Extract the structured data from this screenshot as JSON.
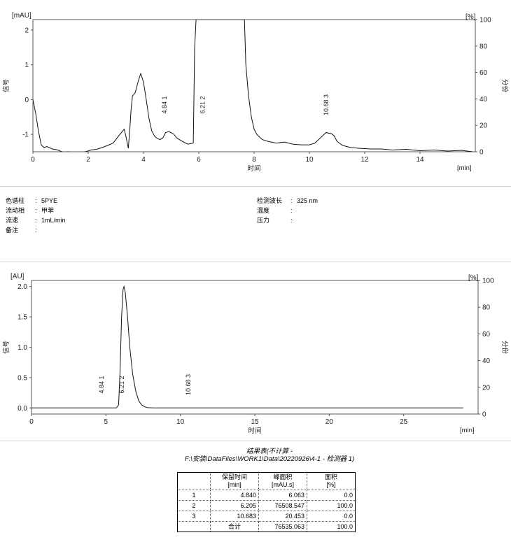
{
  "chart_data": [
    {
      "type": "line",
      "ylabel_unit": "[mAU]",
      "y2label_unit": "[%]",
      "xlabel": "时间",
      "xunit": "[min]",
      "ylabel": "信号",
      "y2label": "分份",
      "xlim": [
        0,
        16
      ],
      "ylim": [
        -1.5,
        2.3
      ],
      "y2lim": [
        0,
        100
      ],
      "xticks": [
        "0",
        "2",
        "4",
        "6",
        "8",
        "10",
        "12",
        "14"
      ],
      "yticks": [
        "-1",
        "0",
        "1",
        "2"
      ],
      "y2ticks": [
        "0",
        "20",
        "40",
        "60",
        "80",
        "100"
      ],
      "series": [
        {
          "x": [
            0.0,
            0.1,
            0.2,
            0.3,
            0.4,
            0.5,
            0.7,
            0.9,
            1.1,
            1.3,
            1.5,
            1.7,
            1.9,
            2.1,
            2.3,
            2.5,
            2.7,
            2.9,
            3.1,
            3.2,
            3.3,
            3.35,
            3.4,
            3.45,
            3.5,
            3.55,
            3.6,
            3.7,
            3.8,
            3.9,
            4.0,
            4.1,
            4.2,
            4.3,
            4.4,
            4.5,
            4.6,
            4.7,
            4.8,
            4.9,
            5.0,
            5.1,
            5.2,
            5.4,
            5.6,
            5.8,
            5.85,
            5.9,
            7.65,
            7.7,
            7.8,
            7.9,
            8.0,
            8.1,
            8.2,
            8.3,
            8.5,
            8.8,
            9.1,
            9.4,
            9.7,
            10.0,
            10.2,
            10.4,
            10.6,
            10.8,
            10.9,
            11.0,
            11.2,
            11.5,
            11.8,
            12.2,
            12.6,
            13.0,
            13.5,
            14.0,
            14.5,
            15.0,
            15.5,
            15.9
          ],
          "values": [
            0.0,
            -0.4,
            -0.9,
            -1.3,
            -1.38,
            -1.35,
            -1.42,
            -1.45,
            -1.52,
            -1.5,
            -1.57,
            -1.52,
            -1.5,
            -1.45,
            -1.43,
            -1.38,
            -1.32,
            -1.25,
            -1.05,
            -0.95,
            -0.85,
            -1.0,
            -1.2,
            -1.4,
            -0.9,
            -0.3,
            0.1,
            0.2,
            0.5,
            0.75,
            0.5,
            0.0,
            -0.55,
            -0.9,
            -1.05,
            -1.12,
            -1.15,
            -1.1,
            -0.95,
            -0.92,
            -0.95,
            -1.0,
            -1.1,
            -1.2,
            -1.28,
            -1.25,
            1.5,
            2.3,
            2.3,
            1.0,
            0.1,
            -0.5,
            -0.85,
            -1.0,
            -1.08,
            -1.15,
            -1.2,
            -1.25,
            -1.22,
            -1.28,
            -1.3,
            -1.3,
            -1.25,
            -1.1,
            -0.95,
            -0.98,
            -1.05,
            -1.2,
            -1.32,
            -1.38,
            -1.4,
            -1.42,
            -1.42,
            -1.45,
            -1.43,
            -1.47,
            -1.45,
            -1.48,
            -1.46,
            -1.5
          ]
        }
      ],
      "peaks": [
        {
          "num": "1",
          "label": "4.84",
          "x": 4.84
        },
        {
          "num": "2",
          "label": "6.21",
          "x": 6.21
        },
        {
          "num": "3",
          "label": "10.68",
          "x": 10.68
        }
      ]
    },
    {
      "type": "line",
      "ylabel_unit": "[AU]",
      "y2label_unit": "[%]",
      "xlabel": "时间",
      "xunit": "[min]",
      "ylabel": "信号",
      "y2label": "分份",
      "xlim": [
        0,
        30
      ],
      "ylim": [
        -0.1,
        2.1
      ],
      "y2lim": [
        0,
        100
      ],
      "xticks": [
        "0",
        "5",
        "10",
        "15",
        "20",
        "25"
      ],
      "yticks": [
        "0.0",
        "0.5",
        "1.0",
        "1.5",
        "2.0"
      ],
      "y2ticks": [
        "0",
        "20",
        "40",
        "60",
        "80",
        "100"
      ],
      "series": [
        {
          "x": [
            0.0,
            4.0,
            5.0,
            5.7,
            5.85,
            5.95,
            6.05,
            6.15,
            6.21,
            6.3,
            6.45,
            6.6,
            6.8,
            7.0,
            7.2,
            7.4,
            7.6,
            7.8,
            8.2,
            9.0,
            12.0,
            18.0,
            24.0,
            29.0
          ],
          "values": [
            0.0,
            0.0,
            0.0,
            0.0,
            0.05,
            0.6,
            1.5,
            1.95,
            2.0,
            1.9,
            1.5,
            1.0,
            0.55,
            0.28,
            0.12,
            0.05,
            0.02,
            0.005,
            0.0,
            0.0,
            0.0,
            0.0,
            0.0,
            0.0
          ]
        }
      ],
      "peaks": [
        {
          "num": "1",
          "label": "4.84",
          "x": 4.84
        },
        {
          "num": "2",
          "label": "6.21",
          "x": 6.21
        },
        {
          "num": "3",
          "label": "10.68",
          "x": 10.68
        }
      ]
    }
  ],
  "conditions": {
    "left": [
      {
        "label": "色谱柱",
        "value": "5PYE"
      },
      {
        "label": "流动相",
        "value": "甲苯"
      },
      {
        "label": "流速",
        "value": "1mL/min"
      },
      {
        "label": "备注",
        "value": ""
      }
    ],
    "right": [
      {
        "label": "检测波长",
        "value": "325 nm"
      },
      {
        "label": "温度",
        "value": ""
      },
      {
        "label": "压力",
        "value": ""
      }
    ]
  },
  "results": {
    "title": "结果表(不计算 -",
    "path": "F:\\安装\\DataFiles\\WORK1\\Data\\20220926\\4-1 - 检测器 1)",
    "headers": [
      {
        "line1": "保留时间",
        "line2": "[min]"
      },
      {
        "line1": "峰面积",
        "line2": "[mAU.s]"
      },
      {
        "line1": "面积",
        "line2": "[%]"
      }
    ],
    "rows": [
      {
        "idx": "1",
        "rt": "4.840",
        "area": "6.063",
        "pct": "0.0"
      },
      {
        "idx": "2",
        "rt": "6.205",
        "area": "76508.547",
        "pct": "100.0"
      },
      {
        "idx": "3",
        "rt": "10.683",
        "area": "20.453",
        "pct": "0.0"
      }
    ],
    "total": {
      "label": "合计",
      "area": "76535.063",
      "pct": "100.0"
    }
  }
}
